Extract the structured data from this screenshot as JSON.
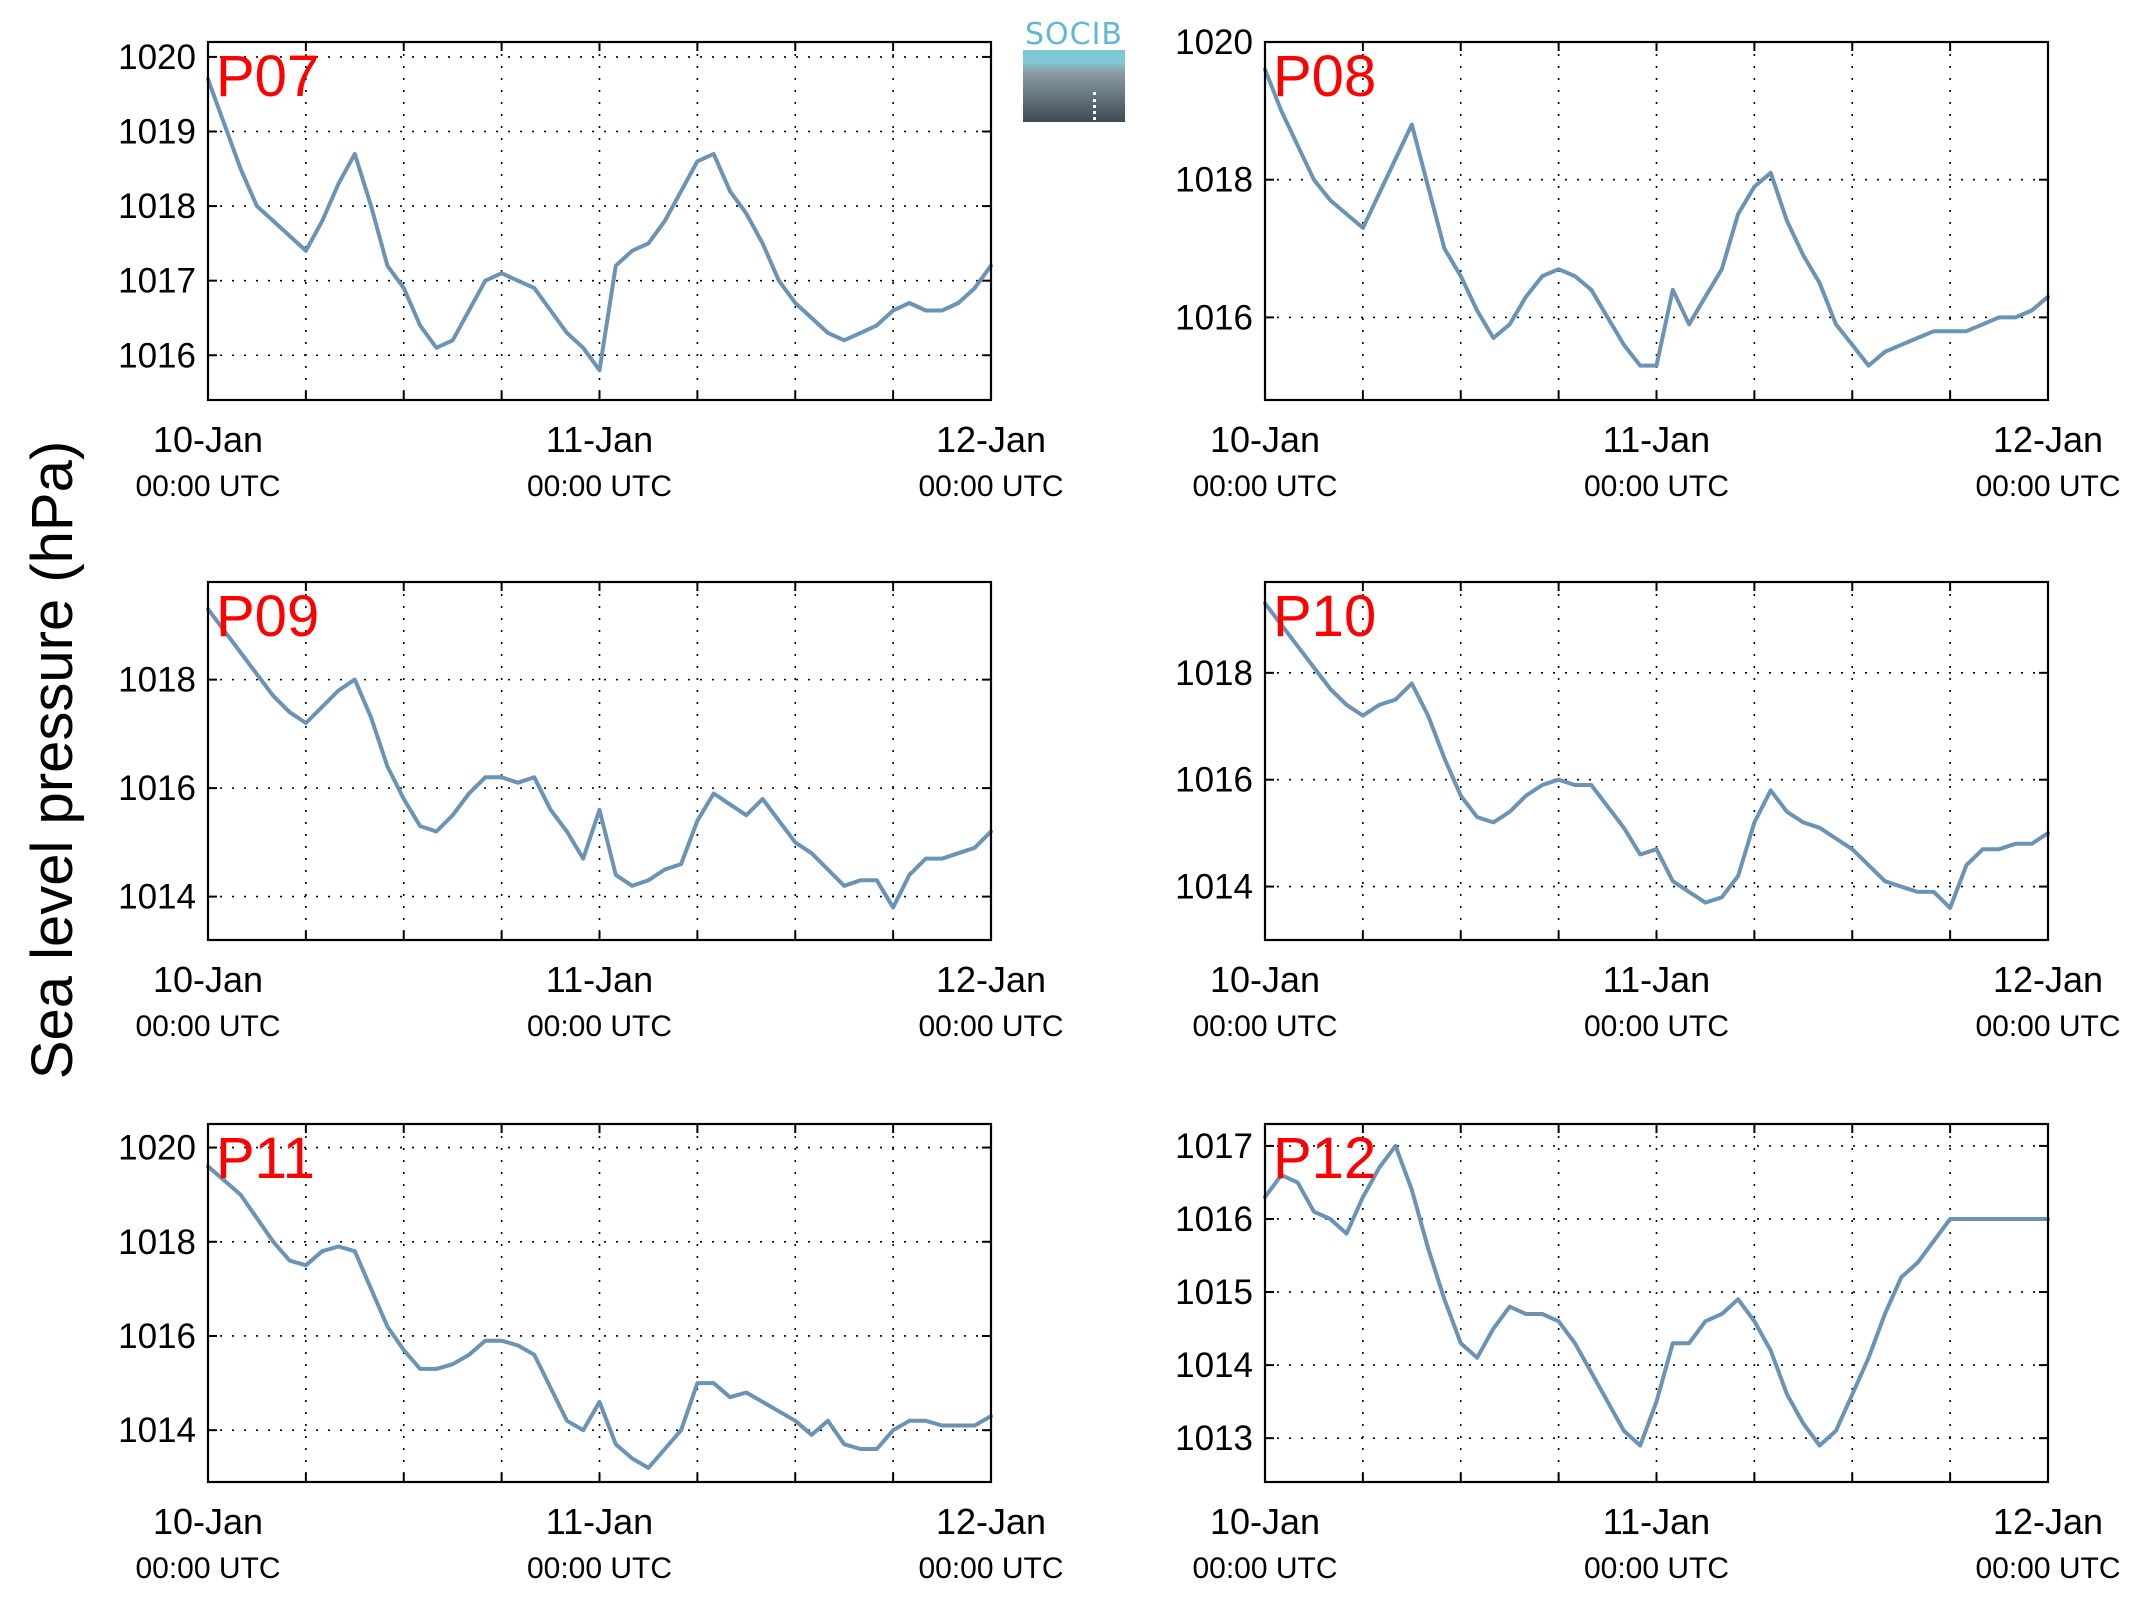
{
  "figure": {
    "ylabel": "Sea level pressure (hPa)",
    "logo_text": "SOCIB",
    "colors": {
      "line": "#6a93b5",
      "station_label": "#ff0000",
      "grid": "#000000"
    },
    "x_ticks": [
      {
        "date": "10-Jan",
        "time": "00:00 UTC"
      },
      {
        "date": "11-Jan",
        "time": "00:00 UTC"
      },
      {
        "date": "12-Jan",
        "time": "00:00 UTC"
      }
    ]
  },
  "chart_data": [
    {
      "type": "line",
      "station": "P07",
      "x_range": [
        "2015-01-10 00:00",
        "2015-01-12 00:00"
      ],
      "ylim": [
        1015.4,
        1020.2
      ],
      "yticks": [
        1016,
        1017,
        1018,
        1019,
        1020
      ],
      "grid": true,
      "series": [
        {
          "x_hours": [
            0,
            1,
            2,
            3,
            4,
            5,
            6,
            7,
            8,
            9,
            10,
            11,
            12,
            13,
            14,
            15,
            16,
            17,
            18,
            19,
            20,
            21,
            22,
            23,
            24,
            25,
            26,
            27,
            28,
            29,
            30,
            31,
            32,
            33,
            34,
            35,
            36,
            37,
            38,
            39,
            40,
            41,
            42,
            43,
            44,
            45,
            46,
            47,
            48
          ],
          "values": [
            1019.7,
            1019.1,
            1018.5,
            1018.0,
            1017.8,
            1017.6,
            1017.4,
            1017.8,
            1018.3,
            1018.7,
            1018.0,
            1017.2,
            1016.9,
            1016.4,
            1016.1,
            1016.2,
            1016.6,
            1017.0,
            1017.1,
            1017.0,
            1016.9,
            1016.6,
            1016.3,
            1016.1,
            1015.8,
            1017.2,
            1017.4,
            1017.5,
            1017.8,
            1018.2,
            1018.6,
            1018.7,
            1018.2,
            1017.9,
            1017.5,
            1017.0,
            1016.7,
            1016.5,
            1016.3,
            1016.2,
            1016.3,
            1016.4,
            1016.6,
            1016.7,
            1016.6,
            1016.6,
            1016.7,
            1016.9,
            1017.2
          ]
        }
      ]
    },
    {
      "type": "line",
      "station": "P08",
      "x_range": [
        "2015-01-10 00:00",
        "2015-01-12 00:00"
      ],
      "ylim": [
        1014.8,
        1020.0
      ],
      "yticks": [
        1016,
        1018,
        1020
      ],
      "grid": true,
      "series": [
        {
          "x_hours": [
            0,
            1,
            2,
            3,
            4,
            5,
            6,
            7,
            8,
            9,
            10,
            11,
            12,
            13,
            14,
            15,
            16,
            17,
            18,
            19,
            20,
            21,
            22,
            23,
            24,
            25,
            26,
            27,
            28,
            29,
            30,
            31,
            32,
            33,
            34,
            35,
            36,
            37,
            38,
            39,
            40,
            41,
            42,
            43,
            44,
            45,
            46,
            47,
            48
          ],
          "values": [
            1019.6,
            1019.0,
            1018.5,
            1018.0,
            1017.7,
            1017.5,
            1017.3,
            1017.8,
            1018.3,
            1018.8,
            1017.9,
            1017.0,
            1016.6,
            1016.1,
            1015.7,
            1015.9,
            1016.3,
            1016.6,
            1016.7,
            1016.6,
            1016.4,
            1016.0,
            1015.6,
            1015.3,
            1015.3,
            1016.4,
            1015.9,
            1016.3,
            1016.7,
            1017.5,
            1017.9,
            1018.1,
            1017.4,
            1016.9,
            1016.5,
            1015.9,
            1015.6,
            1015.3,
            1015.5,
            1015.6,
            1015.7,
            1015.8,
            1015.8,
            1015.8,
            1015.9,
            1016.0,
            1016.0,
            1016.1,
            1016.3
          ]
        }
      ]
    },
    {
      "type": "line",
      "station": "P09",
      "x_range": [
        "2015-01-10 00:00",
        "2015-01-12 00:00"
      ],
      "ylim": [
        1013.2,
        1019.8
      ],
      "yticks": [
        1014,
        1016,
        1018
      ],
      "grid": true,
      "series": [
        {
          "x_hours": [
            0,
            1,
            2,
            3,
            4,
            5,
            6,
            7,
            8,
            9,
            10,
            11,
            12,
            13,
            14,
            15,
            16,
            17,
            18,
            19,
            20,
            21,
            22,
            23,
            24,
            25,
            26,
            27,
            28,
            29,
            30,
            31,
            32,
            33,
            34,
            35,
            36,
            37,
            38,
            39,
            40,
            41,
            42,
            43,
            44,
            45,
            46,
            47,
            48
          ],
          "values": [
            1019.3,
            1018.9,
            1018.5,
            1018.1,
            1017.7,
            1017.4,
            1017.2,
            1017.5,
            1017.8,
            1018.0,
            1017.3,
            1016.4,
            1015.8,
            1015.3,
            1015.2,
            1015.5,
            1015.9,
            1016.2,
            1016.2,
            1016.1,
            1016.2,
            1015.6,
            1015.2,
            1014.7,
            1015.6,
            1014.4,
            1014.2,
            1014.3,
            1014.5,
            1014.6,
            1015.4,
            1015.9,
            1015.7,
            1015.5,
            1015.8,
            1015.4,
            1015.0,
            1014.8,
            1014.5,
            1014.2,
            1014.3,
            1014.3,
            1013.8,
            1014.4,
            1014.7,
            1014.7,
            1014.8,
            1014.9,
            1015.2
          ]
        }
      ]
    },
    {
      "type": "line",
      "station": "P10",
      "x_range": [
        "2015-01-10 00:00",
        "2015-01-12 00:00"
      ],
      "ylim": [
        1013.0,
        1019.7
      ],
      "yticks": [
        1014,
        1016,
        1018
      ],
      "grid": true,
      "series": [
        {
          "x_hours": [
            0,
            1,
            2,
            3,
            4,
            5,
            6,
            7,
            8,
            9,
            10,
            11,
            12,
            13,
            14,
            15,
            16,
            17,
            18,
            19,
            20,
            21,
            22,
            23,
            24,
            25,
            26,
            27,
            28,
            29,
            30,
            31,
            32,
            33,
            34,
            35,
            36,
            37,
            38,
            39,
            40,
            41,
            42,
            43,
            44,
            45,
            46,
            47,
            48
          ],
          "values": [
            1019.3,
            1018.9,
            1018.5,
            1018.1,
            1017.7,
            1017.4,
            1017.2,
            1017.4,
            1017.5,
            1017.8,
            1017.2,
            1016.4,
            1015.7,
            1015.3,
            1015.2,
            1015.4,
            1015.7,
            1015.9,
            1016.0,
            1015.9,
            1015.9,
            1015.5,
            1015.1,
            1014.6,
            1014.7,
            1014.1,
            1013.9,
            1013.7,
            1013.8,
            1014.2,
            1015.2,
            1015.8,
            1015.4,
            1015.2,
            1015.1,
            1014.9,
            1014.7,
            1014.4,
            1014.1,
            1014.0,
            1013.9,
            1013.9,
            1013.6,
            1014.4,
            1014.7,
            1014.7,
            1014.8,
            1014.8,
            1015.0
          ]
        }
      ]
    },
    {
      "type": "line",
      "station": "P11",
      "x_range": [
        "2015-01-10 00:00",
        "2015-01-12 00:00"
      ],
      "ylim": [
        1012.9,
        1020.5
      ],
      "yticks": [
        1014,
        1016,
        1018,
        1020
      ],
      "grid": true,
      "series": [
        {
          "x_hours": [
            0,
            1,
            2,
            3,
            4,
            5,
            6,
            7,
            8,
            9,
            10,
            11,
            12,
            13,
            14,
            15,
            16,
            17,
            18,
            19,
            20,
            21,
            22,
            23,
            24,
            25,
            26,
            27,
            28,
            29,
            30,
            31,
            32,
            33,
            34,
            35,
            36,
            37,
            38,
            39,
            40,
            41,
            42,
            43,
            44,
            45,
            46,
            47,
            48
          ],
          "values": [
            1019.6,
            1019.3,
            1019.0,
            1018.5,
            1018.0,
            1017.6,
            1017.5,
            1017.8,
            1017.9,
            1017.8,
            1017.0,
            1016.2,
            1015.7,
            1015.3,
            1015.3,
            1015.4,
            1015.6,
            1015.9,
            1015.9,
            1015.8,
            1015.6,
            1014.9,
            1014.2,
            1014.0,
            1014.6,
            1013.7,
            1013.4,
            1013.2,
            1013.6,
            1014.0,
            1015.0,
            1015.0,
            1014.7,
            1014.8,
            1014.6,
            1014.4,
            1014.2,
            1013.9,
            1014.2,
            1013.7,
            1013.6,
            1013.6,
            1014.0,
            1014.2,
            1014.2,
            1014.1,
            1014.1,
            1014.1,
            1014.3
          ]
        }
      ]
    },
    {
      "type": "line",
      "station": "P12",
      "x_range": [
        "2015-01-10 00:00",
        "2015-01-12 00:00"
      ],
      "ylim": [
        1012.4,
        1017.3
      ],
      "yticks": [
        1013,
        1014,
        1015,
        1016,
        1017
      ],
      "grid": true,
      "series": [
        {
          "x_hours": [
            0,
            1,
            2,
            3,
            4,
            5,
            6,
            7,
            8,
            9,
            10,
            11,
            12,
            13,
            14,
            15,
            16,
            17,
            18,
            19,
            20,
            21,
            22,
            23,
            24,
            25,
            26,
            27,
            28,
            29,
            30,
            31,
            32,
            33,
            34,
            35,
            36,
            37,
            38,
            39,
            40,
            41,
            42,
            43,
            44,
            45,
            46,
            47,
            48
          ],
          "values": [
            1016.3,
            1016.6,
            1016.5,
            1016.1,
            1016.0,
            1015.8,
            1016.3,
            1016.7,
            1017.0,
            1016.4,
            1015.6,
            1014.9,
            1014.3,
            1014.1,
            1014.5,
            1014.8,
            1014.7,
            1014.7,
            1014.6,
            1014.3,
            1013.9,
            1013.5,
            1013.1,
            1012.9,
            1013.5,
            1014.3,
            1014.3,
            1014.6,
            1014.7,
            1014.9,
            1014.6,
            1014.2,
            1013.6,
            1013.2,
            1012.9,
            1013.1,
            1013.6,
            1014.1,
            1014.7,
            1015.2,
            1015.4,
            1015.7,
            1016.0,
            1016.0,
            1016.0,
            1016.0,
            1016.0,
            1016.0,
            1016.0
          ]
        }
      ]
    }
  ]
}
